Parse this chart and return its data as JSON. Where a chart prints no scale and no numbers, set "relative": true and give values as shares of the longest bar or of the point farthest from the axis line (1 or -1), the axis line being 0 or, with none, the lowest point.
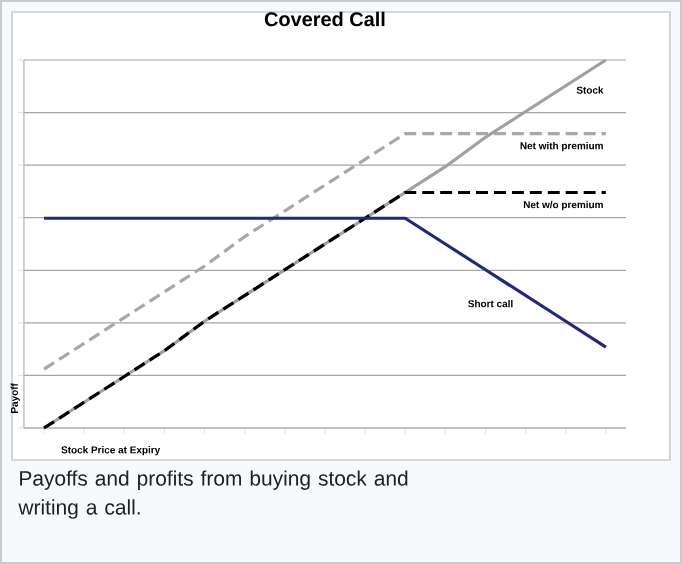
{
  "chart_data": {
    "type": "line",
    "title": "Covered Call",
    "xlabel": "Stock Price at Expiry",
    "ylabel": "Payoff",
    "relative": true,
    "grid": "y",
    "categories": [
      null,
      null,
      null,
      null,
      null,
      null,
      null,
      null,
      null,
      null,
      null,
      null,
      null,
      null,
      null
    ],
    "series": [
      {
        "name": "Stock",
        "color": "#a0a0a0",
        "line_style": "solid",
        "values": [
          0,
          0.07,
          0.14,
          0.21,
          0.29,
          0.36,
          0.43,
          0.5,
          0.57,
          0.64,
          0.71,
          0.79,
          0.86,
          0.93,
          1
        ]
      },
      {
        "name": "Net with premium",
        "color": "#a8a8a8",
        "line_style": "dashed",
        "values": [
          0.16,
          0.23,
          0.3,
          0.37,
          0.44,
          0.52,
          0.59,
          0.66,
          0.73,
          0.8,
          0.8,
          0.8,
          0.8,
          0.8,
          0.8
        ]
      },
      {
        "name": "Net w/o premium",
        "color": "#000000",
        "line_style": "dashed",
        "values": [
          0,
          0.07,
          0.14,
          0.21,
          0.29,
          0.36,
          0.43,
          0.5,
          0.57,
          0.64,
          0.64,
          0.64,
          0.64,
          0.64,
          0.64
        ]
      },
      {
        "name": "Short call",
        "color": "#1f2a7a",
        "line_style": "solid",
        "values": [
          0.57,
          0.57,
          0.57,
          0.57,
          0.57,
          0.57,
          0.57,
          0.57,
          0.57,
          0.57,
          0.5,
          0.43,
          0.36,
          0.29,
          0.22
        ]
      }
    ],
    "annotations": [
      "Payoffs and profits from buying stock and writing a call."
    ]
  }
}
